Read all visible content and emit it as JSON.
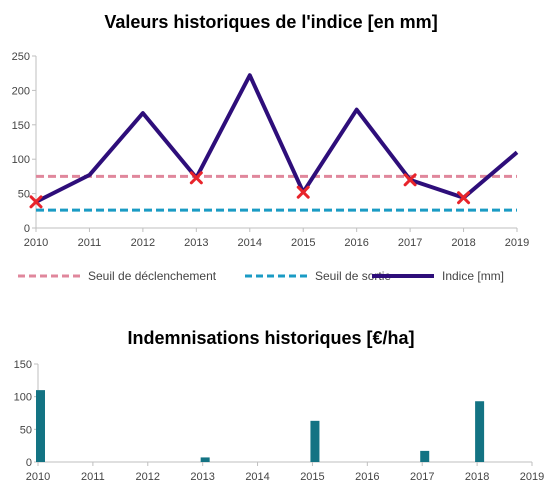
{
  "chart_data": [
    {
      "type": "line",
      "title": "Valeurs historiques de l'indice [en mm]",
      "xlabel": "",
      "ylabel": "",
      "x": [
        2010,
        2011,
        2012,
        2013,
        2014,
        2015,
        2016,
        2017,
        2018,
        2019
      ],
      "x_ticks": [
        "2010",
        "2011",
        "2012",
        "2013",
        "2014",
        "2015",
        "2016",
        "2017",
        "2018",
        "2019"
      ],
      "ylim": [
        0,
        250
      ],
      "y_ticks": [
        "0",
        "50",
        "100",
        "150",
        "200",
        "250"
      ],
      "grid": false,
      "legend_position": "bottom",
      "series": [
        {
          "name": "Seuil de déclenchement",
          "style": "dashed",
          "color": "#e0879c",
          "values": [
            75,
            75,
            75,
            75,
            75,
            75,
            75,
            75,
            75,
            75
          ]
        },
        {
          "name": "Seuil de sortie",
          "style": "dashed",
          "color": "#1a9bc4",
          "values": [
            26,
            26,
            26,
            26,
            26,
            26,
            26,
            26,
            26,
            26
          ]
        },
        {
          "name": "Indice [mm]",
          "style": "solid",
          "color": "#2e0e7a",
          "values": [
            38,
            77,
            167,
            73,
            222,
            52,
            172,
            70,
            44,
            110
          ]
        }
      ],
      "markers": {
        "symbol": "X",
        "color": "#e8242b",
        "x": [
          2010,
          2013,
          2015,
          2017,
          2018
        ],
        "y": [
          38,
          73,
          52,
          70,
          44
        ]
      }
    },
    {
      "type": "bar",
      "title": "Indemnisations historiques [€/ha]",
      "xlabel": "",
      "ylabel": "",
      "categories": [
        "2010",
        "2011",
        "2012",
        "2013",
        "2014",
        "2015",
        "2016",
        "2017",
        "2018",
        "2019"
      ],
      "values": [
        110,
        0,
        0,
        7,
        0,
        63,
        0,
        17,
        93,
        0
      ],
      "ylim": [
        0,
        150
      ],
      "y_ticks": [
        "0",
        "50",
        "100",
        "150"
      ],
      "color": "#137383",
      "grid": false
    }
  ]
}
